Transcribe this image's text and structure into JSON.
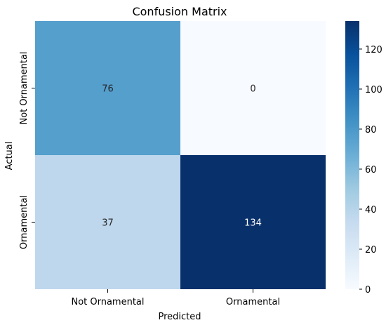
{
  "chart_data": {
    "type": "heatmap",
    "title": "Confusion Matrix",
    "xlabel": "Predicted",
    "ylabel": "Actual",
    "x_categories": [
      "Not Ornamental",
      "Ornamental"
    ],
    "y_categories": [
      "Not Ornamental",
      "Ornamental"
    ],
    "values": [
      [
        76,
        0
      ],
      [
        37,
        134
      ]
    ],
    "colormap": "Blues",
    "vmin": 0,
    "vmax": 134,
    "colorbar_ticks": [
      0,
      20,
      40,
      60,
      80,
      100,
      120
    ],
    "grid": false
  }
}
